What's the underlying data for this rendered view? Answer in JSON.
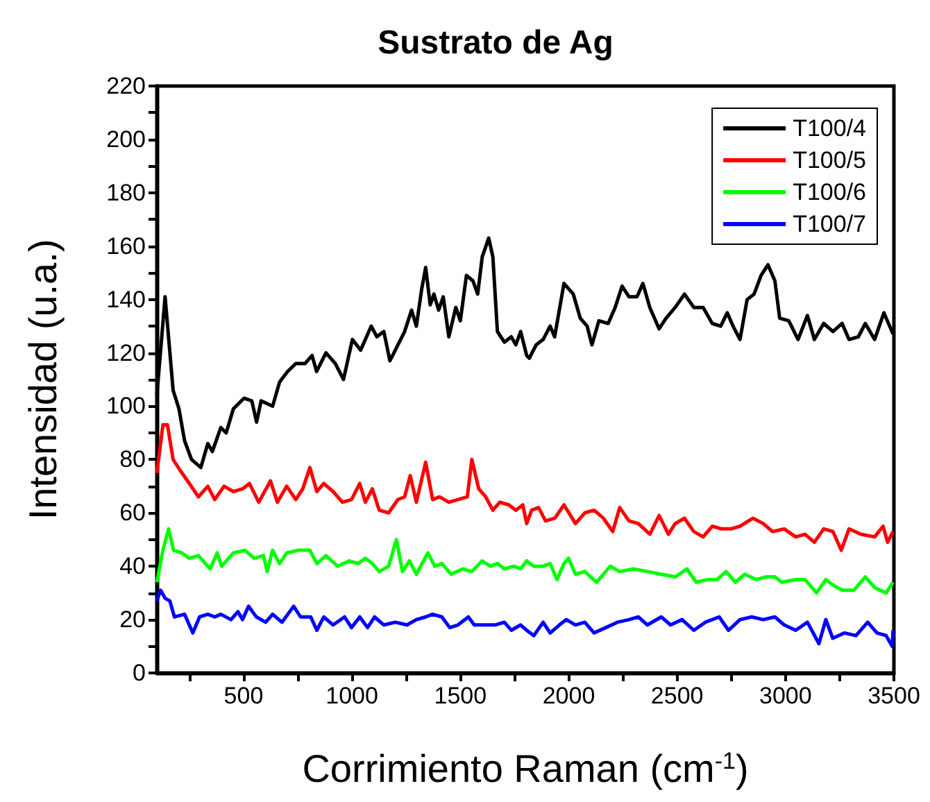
{
  "chart_data": {
    "type": "line",
    "title": "Sustrato de Ag",
    "xlabel": "Corrimiento Raman (cm$^{-1}$)",
    "ylabel": "Intensidad (u.a.)",
    "xlim": [
      100,
      3500
    ],
    "xticks": [
      {
        "value": 250,
        "label": null
      },
      500,
      {
        "value": 750,
        "label": null
      },
      1000,
      {
        "value": 1250,
        "label": null
      },
      1500,
      {
        "value": 1750,
        "label": null
      },
      2000,
      {
        "value": 2250,
        "label": null
      },
      2500,
      {
        "value": 2750,
        "label": null
      },
      3000,
      {
        "value": 3250,
        "label": null
      },
      3500
    ],
    "ylim": [
      0,
      220
    ],
    "yticks": [
      0,
      {
        "value": 10,
        "label": null
      },
      20,
      {
        "value": 30,
        "label": null
      },
      40,
      {
        "value": 50,
        "label": null
      },
      60,
      {
        "value": 70,
        "label": null
      },
      80,
      {
        "value": 90,
        "label": null
      },
      100,
      {
        "value": 110,
        "label": null
      },
      120,
      {
        "value": 130,
        "label": null
      },
      140,
      {
        "value": 150,
        "label": null
      },
      160,
      {
        "value": 170,
        "label": null
      },
      180,
      {
        "value": 190,
        "label": null
      },
      200,
      {
        "value": 210,
        "label": null
      },
      220
    ],
    "grid": false,
    "legend": "top right",
    "marker": "none",
    "line_style": "solid",
    "series": [
      {
        "name": "T100/4",
        "color": "#000000",
        "x": [
          100,
          138,
          175,
          202,
          228,
          260,
          303,
          335,
          356,
          395,
          420,
          453,
          502,
          538,
          560,
          581,
          634,
          666,
          703,
          741,
          784,
          816,
          837,
          880,
          923,
          961,
          1002,
          1040,
          1089,
          1115,
          1147,
          1175,
          1200,
          1243,
          1275,
          1297,
          1322,
          1340,
          1361,
          1378,
          1400,
          1421,
          1447,
          1479,
          1500,
          1528,
          1558,
          1580,
          1601,
          1631,
          1650,
          1671,
          1703,
          1735,
          1756,
          1778,
          1806,
          1818,
          1850,
          1882,
          1914,
          1935,
          1978,
          2021,
          2053,
          2085,
          2107,
          2139,
          2182,
          2214,
          2246,
          2278,
          2315,
          2342,
          2374,
          2417,
          2449,
          2491,
          2534,
          2577,
          2620,
          2662,
          2701,
          2731,
          2758,
          2790,
          2823,
          2855,
          2887,
          2919,
          2951,
          2973,
          3015,
          3058,
          3101,
          3133,
          3176,
          3219,
          3261,
          3293,
          3336,
          3368,
          3411,
          3454,
          3496
        ],
        "values": [
          104,
          141,
          106,
          99,
          87,
          80,
          77,
          86,
          83,
          92,
          90,
          99,
          103,
          102,
          94,
          102,
          100,
          109,
          113,
          116,
          116,
          119,
          113,
          120,
          116,
          110,
          125,
          121,
          130,
          126,
          128,
          117,
          121,
          128,
          136,
          130,
          144,
          152,
          138,
          142,
          136,
          141,
          126,
          137,
          132,
          149,
          147,
          142,
          156,
          163,
          156,
          128,
          124,
          126,
          123,
          128,
          119,
          118,
          123,
          125,
          130,
          126,
          146,
          142,
          133,
          130,
          123,
          132,
          131,
          137,
          145,
          141,
          141,
          146,
          137,
          129,
          133,
          137,
          142,
          137,
          137,
          131,
          130,
          135,
          130,
          125,
          140,
          142,
          149,
          153,
          147,
          133,
          132,
          125,
          134,
          125,
          131,
          128,
          131,
          125,
          126,
          131,
          125,
          135,
          127
        ]
      },
      {
        "name": "T100/5",
        "color": "#ff0000",
        "x": [
          100,
          128,
          149,
          175,
          207,
          250,
          292,
          335,
          367,
          410,
          453,
          495,
          527,
          570,
          624,
          656,
          699,
          741,
          773,
          806,
          838,
          870,
          913,
          956,
          998,
          1036,
          1062,
          1094,
          1126,
          1169,
          1212,
          1243,
          1269,
          1297,
          1340,
          1372,
          1404,
          1447,
          1489,
          1532,
          1553,
          1585,
          1617,
          1650,
          1682,
          1724,
          1756,
          1788,
          1806,
          1829,
          1861,
          1893,
          1936,
          1978,
          2031,
          2074,
          2117,
          2160,
          2203,
          2235,
          2278,
          2321,
          2374,
          2417,
          2460,
          2491,
          2534,
          2577,
          2620,
          2662,
          2705,
          2748,
          2790,
          2850,
          2897,
          2940,
          2994,
          3047,
          3090,
          3133,
          3176,
          3219,
          3257,
          3293,
          3347,
          3411,
          3450,
          3471,
          3496
        ],
        "values": [
          75,
          93,
          93,
          80,
          76,
          71,
          66,
          70,
          65,
          70,
          68,
          69,
          71,
          64,
          72,
          64,
          70,
          65,
          69,
          77,
          68,
          71,
          68,
          64,
          65,
          71,
          64,
          69,
          61,
          60,
          65,
          66,
          74,
          64,
          79,
          65,
          66,
          64,
          65,
          66,
          80,
          69,
          66,
          61,
          64,
          63,
          61,
          63,
          56,
          61,
          62,
          57,
          58,
          63,
          56,
          60,
          61,
          58,
          53,
          62,
          57,
          56,
          52,
          59,
          52,
          56,
          58,
          53,
          51,
          55,
          54,
          54,
          55,
          58,
          56,
          53,
          54,
          51,
          52,
          49,
          54,
          53,
          46,
          54,
          52,
          51,
          55,
          49,
          53
        ]
      },
      {
        "name": "T100/6",
        "color": "#00ff00",
        "x": [
          100,
          128,
          154,
          177,
          215,
          250,
          292,
          346,
          378,
          399,
          453,
          506,
          549,
          592,
          609,
          634,
          666,
          699,
          752,
          806,
          838,
          880,
          934,
          987,
          1029,
          1062,
          1094,
          1126,
          1169,
          1205,
          1233,
          1265,
          1297,
          1350,
          1382,
          1415,
          1457,
          1511,
          1553,
          1600,
          1639,
          1671,
          1703,
          1746,
          1778,
          1806,
          1839,
          1882,
          1914,
          1946,
          1978,
          1999,
          2031,
          2074,
          2128,
          2192,
          2235,
          2299,
          2363,
          2427,
          2491,
          2545,
          2588,
          2641,
          2684,
          2726,
          2769,
          2812,
          2866,
          2908,
          2951,
          2983,
          3047,
          3090,
          3143,
          3186,
          3218,
          3261,
          3315,
          3368,
          3411,
          3464,
          3496
        ],
        "values": [
          34,
          46,
          54,
          46,
          45,
          43,
          44,
          39,
          45,
          40,
          45,
          46,
          43,
          44,
          38,
          46,
          41,
          45,
          46,
          46,
          41,
          44,
          40,
          42,
          41,
          43,
          41,
          38,
          40,
          50,
          38,
          42,
          37,
          45,
          40,
          41,
          37,
          39,
          38,
          42,
          40,
          41,
          39,
          40,
          39,
          42,
          40,
          40,
          41,
          35,
          41,
          43,
          37,
          38,
          34,
          40,
          38,
          39,
          38,
          37,
          36,
          39,
          34,
          35,
          35,
          38,
          34,
          37,
          35,
          36,
          36,
          34,
          35,
          35,
          30,
          35,
          33,
          31,
          31,
          36,
          32,
          30,
          34
        ]
      },
      {
        "name": "T100/7",
        "color": "#0000ff",
        "x": [
          100,
          117,
          138,
          160,
          181,
          228,
          266,
          297,
          335,
          367,
          395,
          442,
          474,
          495,
          523,
          559,
          602,
          634,
          677,
          731,
          763,
          810,
          838,
          870,
          913,
          966,
          998,
          1036,
          1072,
          1104,
          1147,
          1200,
          1254,
          1297,
          1340,
          1372,
          1415,
          1451,
          1489,
          1537,
          1564,
          1607,
          1660,
          1703,
          1735,
          1778,
          1806,
          1839,
          1882,
          1914,
          1957,
          1989,
          2031,
          2074,
          2117,
          2171,
          2224,
          2278,
          2321,
          2363,
          2427,
          2470,
          2523,
          2577,
          2630,
          2694,
          2737,
          2790,
          2844,
          2897,
          2951,
          2994,
          3047,
          3101,
          3154,
          3186,
          3218,
          3272,
          3325,
          3379,
          3422,
          3464,
          3492,
          3496
        ],
        "values": [
          27,
          31,
          28,
          27,
          21,
          22,
          15,
          21,
          22,
          21,
          22,
          20,
          23,
          20,
          25,
          21,
          19,
          22,
          19,
          25,
          21,
          21,
          16,
          21,
          18,
          21,
          17,
          21,
          17,
          21,
          18,
          19,
          18,
          20,
          21,
          22,
          21,
          17,
          18,
          21,
          18,
          18,
          18,
          19,
          16,
          18,
          16,
          14,
          19,
          15,
          18,
          20,
          18,
          19,
          15,
          17,
          19,
          20,
          21,
          18,
          21,
          18,
          20,
          16,
          19,
          21,
          16,
          20,
          21,
          20,
          21,
          18,
          16,
          19,
          11,
          20,
          13,
          15,
          14,
          19,
          15,
          14,
          10,
          16
        ]
      }
    ]
  }
}
